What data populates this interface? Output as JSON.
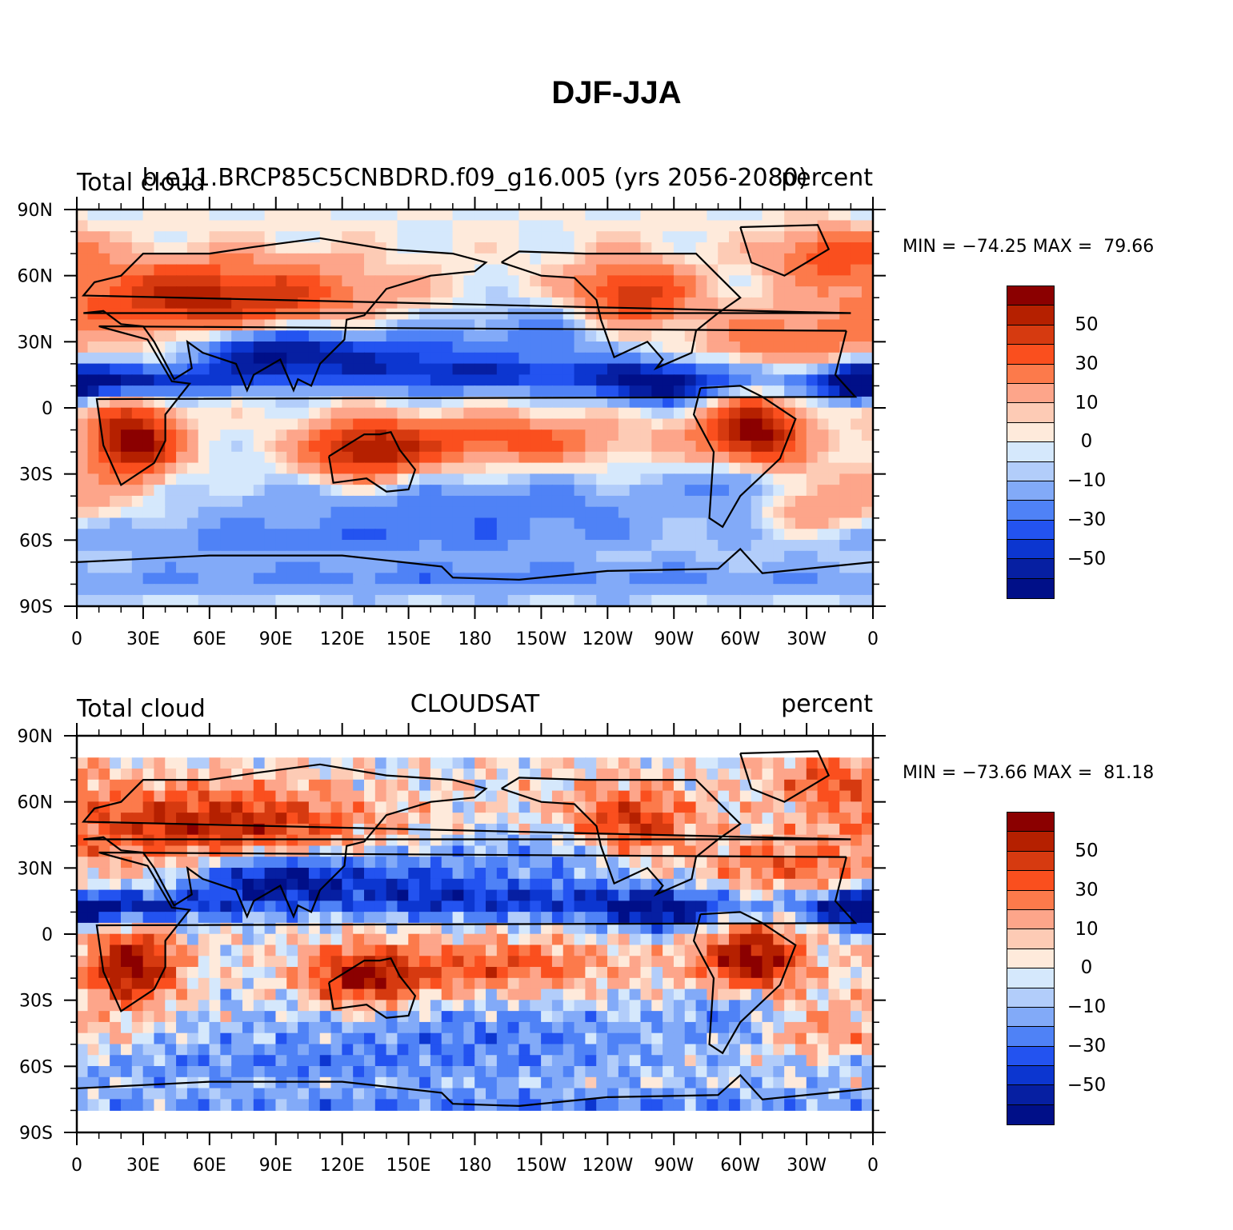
{
  "title": "DJF-JJA",
  "panels": [
    {
      "left_title": "Total cloud",
      "center_title": "b.e11.BRCP85C5CNBDRD.f09_g16.005 (yrs 2056-2080)",
      "right_title": "percent",
      "stats": "MIN = −74.25 MAX =  79.66",
      "data_lat_range": [
        -90,
        90
      ]
    },
    {
      "left_title": "Total cloud",
      "center_title": "CLOUDSAT",
      "right_title": "percent",
      "stats": "MIN = −73.66 MAX =  81.18",
      "data_lat_range": [
        -80,
        80
      ]
    }
  ],
  "x_ticks": [
    "0",
    "30E",
    "60E",
    "90E",
    "120E",
    "150E",
    "180",
    "150W",
    "120W",
    "90W",
    "60W",
    "30W",
    "0"
  ],
  "y_ticks": [
    "90N",
    "60N",
    "30N",
    "0",
    "30S",
    "60S",
    "90S"
  ],
  "colorbar": {
    "colors": [
      "#8b0000",
      "#b52000",
      "#d63a10",
      "#fa4f1e",
      "#fc7a4b",
      "#fda58a",
      "#fdcbb5",
      "#feeadb",
      "#d5e8fc",
      "#b2cdfa",
      "#82aaf8",
      "#4f82f6",
      "#2353f0",
      "#0c36d0",
      "#061fa2",
      "#000f88"
    ],
    "labels": [
      "50",
      "30",
      "10",
      "0",
      "−10",
      "−30",
      "−50"
    ]
  },
  "legend_colors": {
    "land_outline": "#000000",
    "positive": "#fa4f1e",
    "negative": "#2353f0"
  }
}
